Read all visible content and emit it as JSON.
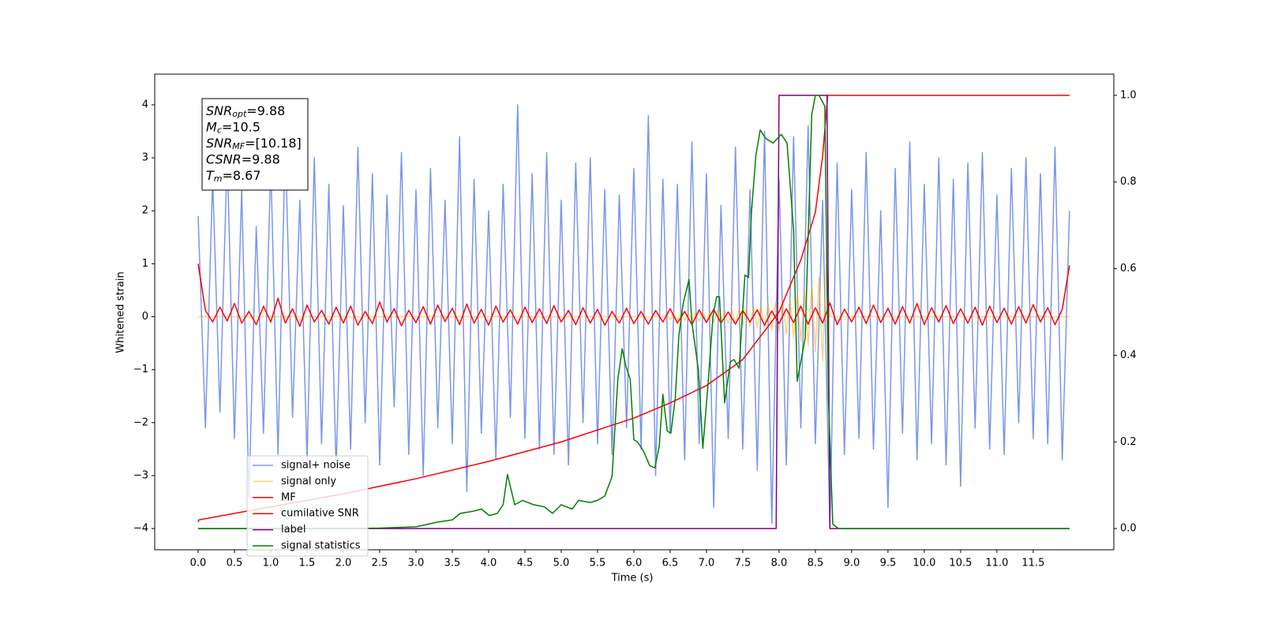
{
  "chart_data": {
    "type": "line",
    "xlabel": "Time (s)",
    "ylabel": "Whitened strain",
    "xlim": [
      -0.598,
      12.61
    ],
    "ylim": [
      -4.4,
      4.58
    ],
    "y2lim": [
      -0.049,
      1.049
    ],
    "xticks": [
      {
        "value": 0,
        "label": "0.0"
      },
      0.5,
      {
        "value": 1,
        "label": "1.0"
      },
      1.5,
      {
        "value": 2,
        "label": "2.0"
      },
      2.5,
      {
        "value": 3,
        "label": "3.0"
      },
      3.5,
      {
        "value": 4,
        "label": "4.0"
      },
      4.5,
      {
        "value": 5,
        "label": "5.0"
      },
      5.5,
      {
        "value": 6,
        "label": "6.0"
      },
      6.5,
      {
        "value": 7,
        "label": "7.0"
      },
      7.5,
      {
        "value": 8,
        "label": "8.0"
      },
      8.5,
      {
        "value": 9,
        "label": "9.0"
      },
      9.5,
      {
        "value": 10,
        "label": "10.0"
      },
      10.5,
      {
        "value": 11,
        "label": "11.0"
      },
      11.5
    ],
    "yticks": [
      {
        "value": -4,
        "label": "−4"
      },
      {
        "value": -3,
        "label": "−3"
      },
      {
        "value": -2,
        "label": "−2"
      },
      {
        "value": -1,
        "label": "−1"
      },
      0,
      1,
      2,
      3,
      4
    ],
    "y2ticks": [
      {
        "value": 0,
        "label": "0.0"
      },
      0.2,
      0.4,
      0.6,
      0.8,
      {
        "value": 1,
        "label": "1.0"
      }
    ],
    "legend": "lower left",
    "annotations": [
      {
        "name": "SNR",
        "sub": "opt",
        "text": "=9.88"
      },
      {
        "name": "M",
        "sub": "c",
        "text": "=10.5"
      },
      {
        "name": "SNR",
        "sub": "MF",
        "text": "=[10.18]"
      },
      {
        "name": "CSNR",
        "text": "=9.88"
      },
      {
        "name": "T",
        "sub": "m",
        "text": "=8.67"
      }
    ],
    "series": [
      {
        "name": "signal+ noise",
        "color": "#4169e1",
        "alpha": 0.7,
        "x": [
          0,
          0.1,
          0.2,
          0.3,
          0.4,
          0.5,
          0.6,
          0.7,
          0.8,
          0.9,
          1,
          1.1,
          1.2,
          1.3,
          1.4,
          1.5,
          1.6,
          1.7,
          1.8,
          1.9,
          2,
          2.1,
          2.2,
          2.3,
          2.4,
          2.5,
          2.6,
          2.7,
          2.8,
          2.9,
          3,
          3.1,
          3.2,
          3.3,
          3.4,
          3.5,
          3.6,
          3.7,
          3.8,
          3.9,
          4,
          4.1,
          4.2,
          4.3,
          4.4,
          4.5,
          4.6,
          4.7,
          4.8,
          4.9,
          5,
          5.1,
          5.2,
          5.3,
          5.4,
          5.5,
          5.6,
          5.7,
          5.8,
          5.9,
          6,
          6.1,
          6.2,
          6.3,
          6.4,
          6.5,
          6.6,
          6.7,
          6.8,
          6.9,
          7,
          7.1,
          7.2,
          7.3,
          7.4,
          7.5,
          7.6,
          7.7,
          7.8,
          7.9,
          8,
          8.1,
          8.2,
          8.3,
          8.4,
          8.5,
          8.6,
          8.7,
          8.8,
          8.9,
          9,
          9.1,
          9.2,
          9.3,
          9.4,
          9.5,
          9.6,
          9.7,
          9.8,
          9.9,
          10,
          10.1,
          10.2,
          10.3,
          10.4,
          10.5,
          10.6,
          10.7,
          10.8,
          10.9,
          11,
          11.1,
          11.2,
          11.3,
          11.4,
          11.5,
          11.6,
          11.7,
          11.8,
          11.9,
          12
        ],
        "values": [
          1.9,
          -2.1,
          2.6,
          -1.8,
          3.1,
          -2.3,
          2.4,
          -3.4,
          1.7,
          -2.2,
          2.9,
          -2.6,
          3.3,
          -1.9,
          2.2,
          -2.7,
          3.0,
          -2.4,
          2.5,
          -2.9,
          2.1,
          -2.5,
          3.2,
          -2.0,
          2.7,
          -2.8,
          2.3,
          -1.7,
          3.1,
          -2.6,
          2.4,
          -3.0,
          2.8,
          -2.1,
          2.2,
          -2.4,
          3.4,
          -3.3,
          2.6,
          -2.2,
          2.0,
          -2.7,
          2.5,
          -1.9,
          4.0,
          -2.3,
          2.7,
          -2.5,
          3.1,
          -2.6,
          2.2,
          -2.8,
          2.9,
          -2.0,
          3.0,
          -2.4,
          2.4,
          -2.6,
          2.3,
          -2.1,
          2.8,
          -2.5,
          3.8,
          -3.0,
          2.6,
          -2.2,
          2.5,
          -2.7,
          3.3,
          -2.4,
          2.7,
          -3.6,
          2.1,
          -2.3,
          3.2,
          -2.5,
          2.4,
          -2.9,
          3.5,
          -3.9,
          2.6,
          -2.8,
          3.4,
          -2.1,
          3.6,
          -2.4,
          2.2,
          -4.0,
          2.9,
          -2.6,
          2.4,
          -2.3,
          3.1,
          -2.5,
          2.0,
          -3.6,
          2.8,
          -2.2,
          3.3,
          -2.7,
          2.5,
          -2.4,
          3.0,
          -2.8,
          2.6,
          -3.2,
          2.9,
          -2.1,
          3.1,
          -2.5,
          2.3,
          -2.6,
          2.8,
          -2.0,
          3.0,
          -2.3,
          2.7,
          -2.4,
          3.2,
          -2.7,
          2.0
        ]
      },
      {
        "name": "signal only",
        "color": "#ffa500",
        "alpha": 0.5,
        "x": [
          0,
          6.4,
          6.45,
          6.5,
          6.55,
          6.6,
          6.65,
          6.7,
          6.75,
          6.8,
          6.85,
          6.9,
          6.95,
          7.0,
          7.05,
          7.1,
          7.15,
          7.2,
          7.25,
          7.3,
          7.35,
          7.4,
          7.45,
          7.5,
          7.55,
          7.6,
          7.65,
          7.7,
          7.75,
          7.8,
          7.85,
          7.9,
          7.95,
          8.0,
          8.05,
          8.1,
          8.15,
          8.2,
          8.25,
          8.3,
          8.35,
          8.4,
          8.45,
          8.5,
          8.55,
          8.6,
          8.65,
          8.7,
          12
        ],
        "values": [
          0,
          0,
          0.04,
          -0.05,
          0.05,
          -0.06,
          0.06,
          -0.07,
          0.07,
          -0.08,
          0.08,
          -0.09,
          0.09,
          -0.1,
          0.1,
          -0.11,
          0.11,
          -0.12,
          0.12,
          -0.13,
          0.14,
          -0.14,
          0.15,
          -0.16,
          0.17,
          -0.18,
          0.19,
          -0.2,
          0.21,
          -0.22,
          0.24,
          -0.25,
          0.27,
          -0.29,
          0.31,
          -0.33,
          0.36,
          -0.39,
          0.42,
          -0.46,
          0.5,
          -0.55,
          0.6,
          -0.66,
          0.74,
          -0.84,
          0.98,
          0,
          0
        ]
      },
      {
        "name": "MF",
        "color": "#ff0000",
        "alpha": 1,
        "x": [
          0,
          0.1,
          0.2,
          0.3,
          0.4,
          0.5,
          0.6,
          0.7,
          0.8,
          0.9,
          1,
          1.1,
          1.2,
          1.3,
          1.4,
          1.5,
          1.6,
          1.7,
          1.8,
          1.9,
          2,
          2.1,
          2.2,
          2.3,
          2.4,
          2.5,
          2.6,
          2.7,
          2.8,
          2.9,
          3,
          3.1,
          3.2,
          3.3,
          3.4,
          3.5,
          3.6,
          3.7,
          3.8,
          3.9,
          4,
          4.1,
          4.2,
          4.3,
          4.4,
          4.5,
          4.6,
          4.7,
          4.8,
          4.9,
          5,
          5.1,
          5.2,
          5.3,
          5.4,
          5.5,
          5.6,
          5.7,
          5.8,
          5.9,
          6,
          6.1,
          6.2,
          6.3,
          6.4,
          6.5,
          6.6,
          6.7,
          6.8,
          6.9,
          7,
          7.1,
          7.2,
          7.3,
          7.4,
          7.5,
          7.6,
          7.7,
          7.8,
          7.9,
          8,
          8.1,
          8.2,
          8.3,
          8.4,
          8.5,
          8.6,
          8.7,
          8.8,
          8.9,
          9,
          9.1,
          9.2,
          9.3,
          9.4,
          9.5,
          9.6,
          9.7,
          9.8,
          9.9,
          10,
          10.1,
          10.2,
          10.3,
          10.4,
          10.5,
          10.6,
          10.7,
          10.8,
          10.9,
          11,
          11.1,
          11.2,
          11.3,
          11.4,
          11.5,
          11.6,
          11.7,
          11.8,
          11.9,
          12
        ],
        "values": [
          1.0,
          0.12,
          -0.1,
          0.18,
          -0.08,
          0.25,
          -0.12,
          0.1,
          -0.15,
          0.2,
          -0.1,
          0.35,
          -0.12,
          0.15,
          -0.18,
          0.22,
          -0.1,
          0.12,
          -0.14,
          0.18,
          -0.12,
          0.2,
          -0.16,
          0.1,
          -0.13,
          0.28,
          -0.1,
          0.15,
          -0.17,
          0.12,
          -0.11,
          0.19,
          -0.14,
          0.22,
          -0.09,
          0.16,
          -0.15,
          0.24,
          -0.12,
          0.14,
          -0.16,
          0.2,
          -0.1,
          0.13,
          -0.14,
          0.18,
          -0.11,
          0.15,
          -0.13,
          0.21,
          -0.1,
          0.12,
          -0.15,
          0.17,
          -0.12,
          0.14,
          -0.16,
          0.1,
          -0.12,
          0.16,
          -0.13,
          0.1,
          -0.14,
          0.12,
          -0.1,
          0.15,
          -0.12,
          0.1,
          -0.15,
          0.13,
          -0.11,
          0.14,
          -0.12,
          0.09,
          -0.14,
          0.12,
          -0.1,
          0.13,
          -0.16,
          0.11,
          -0.13,
          0.15,
          -0.11,
          0.2,
          -0.14,
          0.17,
          -0.12,
          0.26,
          -0.15,
          0.14,
          -0.1,
          0.18,
          -0.13,
          0.22,
          -0.11,
          0.16,
          -0.14,
          0.19,
          -0.12,
          0.25,
          -0.15,
          0.17,
          -0.1,
          0.21,
          -0.13,
          0.15,
          -0.12,
          0.18,
          -0.16,
          0.2,
          -0.11,
          0.16,
          -0.14,
          0.19,
          -0.12,
          0.23,
          -0.1,
          0.17,
          -0.15,
          0.14,
          0.97
        ]
      },
      {
        "name": "cumilative SNR",
        "color": "#ff0000",
        "alpha": 1,
        "axis": "y2",
        "x": [
          0,
          0.01,
          0.5,
          1,
          2,
          3,
          4,
          5,
          6,
          6.5,
          7,
          7.5,
          8,
          8.3,
          8.5,
          8.6,
          8.67,
          12
        ],
        "values": [
          0.015,
          0.02,
          0.035,
          0.05,
          0.08,
          0.115,
          0.155,
          0.2,
          0.255,
          0.29,
          0.33,
          0.39,
          0.5,
          0.62,
          0.73,
          0.86,
          1.0,
          1.0
        ]
      },
      {
        "name": "label",
        "color": "#800080",
        "alpha": 1,
        "axis": "y2",
        "x": [
          0,
          7.96,
          8.0,
          8.66,
          8.7,
          12
        ],
        "values": [
          0,
          0,
          1,
          1,
          0,
          0
        ]
      },
      {
        "name": "signal statistics",
        "color": "#008000",
        "alpha": 1,
        "axis": "y2",
        "x": [
          0,
          1,
          2,
          2.5,
          3.0,
          3.3,
          3.5,
          3.61,
          3.79,
          3.9,
          4.01,
          4.12,
          4.2,
          4.26,
          4.36,
          4.47,
          4.62,
          4.77,
          4.88,
          5.0,
          5.15,
          5.24,
          5.4,
          5.5,
          5.6,
          5.7,
          5.78,
          5.84,
          5.89,
          5.95,
          6.0,
          6.05,
          6.13,
          6.22,
          6.29,
          6.35,
          6.4,
          6.46,
          6.51,
          6.57,
          6.62,
          6.68,
          6.76,
          6.8,
          6.89,
          6.95,
          7.02,
          7.09,
          7.14,
          7.18,
          7.25,
          7.33,
          7.38,
          7.45,
          7.53,
          7.58,
          7.62,
          7.68,
          7.74,
          7.82,
          7.92,
          8.03,
          8.11,
          8.2,
          8.25,
          8.36,
          8.45,
          8.5,
          8.55,
          8.63,
          8.68,
          8.74,
          8.82,
          12
        ],
        "values": [
          0,
          0,
          0,
          0.001,
          0.004,
          0.015,
          0.02,
          0.035,
          0.04,
          0.045,
          0.03,
          0.035,
          0.055,
          0.125,
          0.055,
          0.065,
          0.055,
          0.05,
          0.035,
          0.055,
          0.045,
          0.065,
          0.06,
          0.065,
          0.075,
          0.12,
          0.345,
          0.415,
          0.375,
          0.345,
          0.205,
          0.2,
          0.18,
          0.145,
          0.14,
          0.19,
          0.31,
          0.225,
          0.22,
          0.3,
          0.445,
          0.52,
          0.575,
          0.475,
          0.365,
          0.185,
          0.33,
          0.49,
          0.535,
          0.535,
          0.29,
          0.385,
          0.39,
          0.37,
          0.585,
          0.58,
          0.73,
          0.86,
          0.92,
          0.9,
          0.89,
          0.91,
          0.89,
          0.69,
          0.34,
          0.44,
          0.955,
          1.0,
          1.0,
          0.975,
          0.3,
          0.01,
          0,
          0
        ]
      }
    ]
  }
}
